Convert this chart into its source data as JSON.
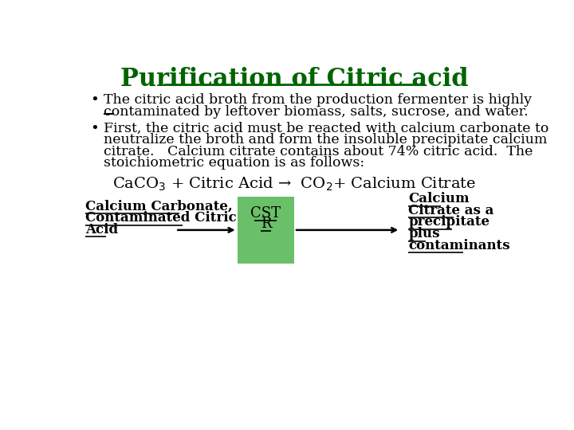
{
  "title": "Purification of Citric acid",
  "title_color": "#006400",
  "title_fontsize": 22,
  "bg_color": "#ffffff",
  "bullet1_line1": "The citric acid broth from the production fermenter is highly",
  "bullet1_line2": "contaminated by leftover biomass, salts, sucrose, and water.",
  "bullet2_line1": "First, the citric acid must be reacted with calcium carbonate to",
  "bullet2_line2": "neutralize the broth and form the insoluble precipitate calcium",
  "bullet2_line3": "citrate.   Calcium citrate contains about 74% citric acid.  The",
  "bullet2_line4": "stoichiometric equation is as follows:",
  "equation": "CaCO$_3$ + Citric Acid →  CO$_2$+ Calcium Citrate",
  "cstr_color": "#6abf69",
  "left_label_line1": "Calcium Carbonate,",
  "left_label_line2": "Contaminated Citric",
  "left_label_line3": "Acid",
  "right_label_line1": "Calcium",
  "right_label_line2": "Citrate as a",
  "right_label_line3": "precipitate",
  "right_label_line4": "plus",
  "right_label_line5": "contaminants",
  "text_color": "#000000",
  "font_family": "DejaVu Serif"
}
